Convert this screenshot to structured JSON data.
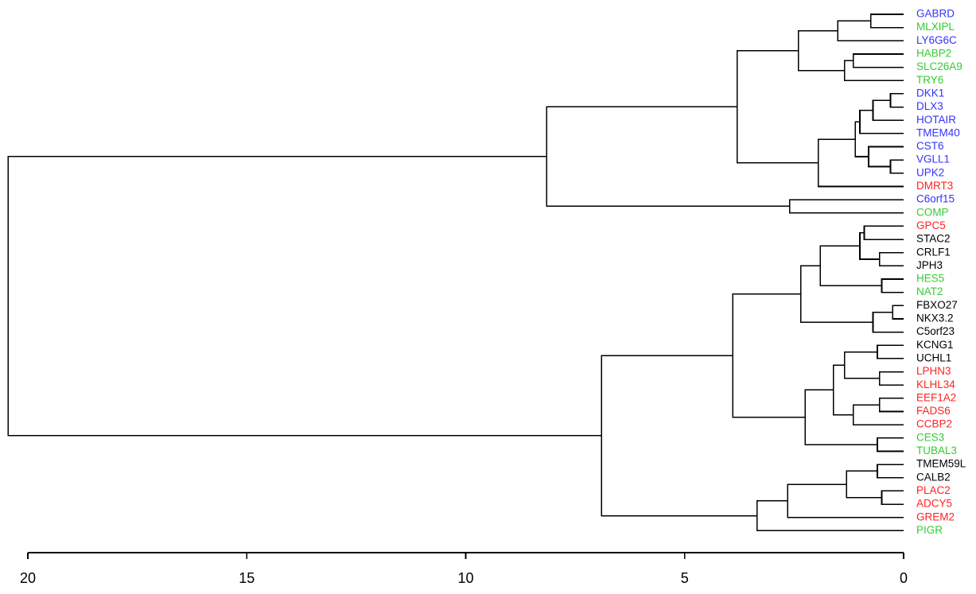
{
  "chart_data": {
    "type": "dendrogram",
    "title": "",
    "xlabel": "",
    "ylabel": "",
    "orientation": "horizontal",
    "xlim": [
      20,
      0
    ],
    "x_ticks": [
      20,
      15,
      10,
      5,
      0
    ],
    "x_tick_labels": [
      "20",
      "15",
      "10",
      "5",
      "0"
    ],
    "leaves": [
      {
        "label": "GABRD",
        "color": "#3333ff"
      },
      {
        "label": "MLXIPL",
        "color": "#33cc33"
      },
      {
        "label": "LY6G6C",
        "color": "#3333ff"
      },
      {
        "label": "HABP2",
        "color": "#33cc33"
      },
      {
        "label": "SLC26A9",
        "color": "#33cc33"
      },
      {
        "label": "TRY6",
        "color": "#33cc33"
      },
      {
        "label": "DKK1",
        "color": "#3333ff"
      },
      {
        "label": "DLX3",
        "color": "#3333ff"
      },
      {
        "label": "HOTAIR",
        "color": "#3333ff"
      },
      {
        "label": "TMEM40",
        "color": "#3333ff"
      },
      {
        "label": "CST6",
        "color": "#3333ff"
      },
      {
        "label": "VGLL1",
        "color": "#3333ff"
      },
      {
        "label": "UPK2",
        "color": "#3333ff"
      },
      {
        "label": "DMRT3",
        "color": "#ff2222"
      },
      {
        "label": "C6orf15",
        "color": "#3333ff"
      },
      {
        "label": "COMP",
        "color": "#33cc33"
      },
      {
        "label": "GPC5",
        "color": "#ff2222"
      },
      {
        "label": "STAC2",
        "color": "#000000"
      },
      {
        "label": "CRLF1",
        "color": "#000000"
      },
      {
        "label": "JPH3",
        "color": "#000000"
      },
      {
        "label": "HES5",
        "color": "#33cc33"
      },
      {
        "label": "NAT2",
        "color": "#33cc33"
      },
      {
        "label": "FBXO27",
        "color": "#000000"
      },
      {
        "label": "NKX3.2",
        "color": "#000000"
      },
      {
        "label": "C5orf23",
        "color": "#000000"
      },
      {
        "label": "KCNG1",
        "color": "#000000"
      },
      {
        "label": "UCHL1",
        "color": "#000000"
      },
      {
        "label": "LPHN3",
        "color": "#ff2222"
      },
      {
        "label": "KLHL34",
        "color": "#ff2222"
      },
      {
        "label": "EEF1A2",
        "color": "#ff2222"
      },
      {
        "label": "FADS6",
        "color": "#ff2222"
      },
      {
        "label": "CCBP2",
        "color": "#ff2222"
      },
      {
        "label": "CES3",
        "color": "#33cc33"
      },
      {
        "label": "TUBAL3",
        "color": "#33cc33"
      },
      {
        "label": "TMEM59L",
        "color": "#000000"
      },
      {
        "label": "CALB2",
        "color": "#000000"
      },
      {
        "label": "PLAC2",
        "color": "#ff2222"
      },
      {
        "label": "ADCY5",
        "color": "#ff2222"
      },
      {
        "label": "GREM2",
        "color": "#ff2222"
      },
      {
        "label": "PIGR",
        "color": "#33cc33"
      }
    ],
    "merges": [
      {
        "id": "m1",
        "children": [
          "GABRD",
          "MLXIPL"
        ],
        "height": 0.75
      },
      {
        "id": "m2",
        "children": [
          "m1",
          "LY6G6C"
        ],
        "height": 1.5
      },
      {
        "id": "m3",
        "children": [
          "HABP2",
          "SLC26A9"
        ],
        "height": 1.15
      },
      {
        "id": "m4",
        "children": [
          "m3",
          "TRY6"
        ],
        "height": 1.35
      },
      {
        "id": "m5",
        "children": [
          "m2",
          "m4"
        ],
        "height": 2.4
      },
      {
        "id": "m6",
        "children": [
          "DKK1",
          "DLX3"
        ],
        "height": 0.3
      },
      {
        "id": "m7",
        "children": [
          "m6",
          "HOTAIR"
        ],
        "height": 0.7
      },
      {
        "id": "m8",
        "children": [
          "m7",
          "TMEM40"
        ],
        "height": 1.0
      },
      {
        "id": "m9",
        "children": [
          "VGLL1",
          "UPK2"
        ],
        "height": 0.3
      },
      {
        "id": "m10",
        "children": [
          "CST6",
          "m9"
        ],
        "height": 0.8
      },
      {
        "id": "m11",
        "children": [
          "m8",
          "m10"
        ],
        "height": 1.1
      },
      {
        "id": "m12",
        "children": [
          "m11",
          "DMRT3"
        ],
        "height": 1.95
      },
      {
        "id": "m13",
        "children": [
          "m5",
          "m12"
        ],
        "height": 3.8
      },
      {
        "id": "m14",
        "children": [
          "C6orf15",
          "COMP"
        ],
        "height": 2.6
      },
      {
        "id": "m15",
        "children": [
          "m13",
          "m14"
        ],
        "height": 8.15
      },
      {
        "id": "m16",
        "children": [
          "GPC5",
          "STAC2"
        ],
        "height": 0.9
      },
      {
        "id": "m17",
        "children": [
          "CRLF1",
          "JPH3"
        ],
        "height": 0.55
      },
      {
        "id": "m18",
        "children": [
          "m16",
          "m17"
        ],
        "height": 1.0
      },
      {
        "id": "m19",
        "children": [
          "HES5",
          "NAT2"
        ],
        "height": 0.5
      },
      {
        "id": "m20",
        "children": [
          "m18",
          "m19"
        ],
        "height": 1.9
      },
      {
        "id": "m21",
        "children": [
          "FBXO27",
          "NKX3.2"
        ],
        "height": 0.25
      },
      {
        "id": "m22",
        "children": [
          "m21",
          "C5orf23"
        ],
        "height": 0.7
      },
      {
        "id": "m23",
        "children": [
          "m20",
          "m22"
        ],
        "height": 2.35
      },
      {
        "id": "m24",
        "children": [
          "KCNG1",
          "UCHL1"
        ],
        "height": 0.6
      },
      {
        "id": "m25",
        "children": [
          "LPHN3",
          "KLHL34"
        ],
        "height": 0.55
      },
      {
        "id": "m26",
        "children": [
          "m24",
          "m25"
        ],
        "height": 1.35
      },
      {
        "id": "m27",
        "children": [
          "EEF1A2",
          "FADS6"
        ],
        "height": 0.55
      },
      {
        "id": "m28",
        "children": [
          "m27",
          "CCBP2"
        ],
        "height": 1.15
      },
      {
        "id": "m29",
        "children": [
          "m26",
          "m28"
        ],
        "height": 1.6
      },
      {
        "id": "m30",
        "children": [
          "CES3",
          "TUBAL3"
        ],
        "height": 0.6
      },
      {
        "id": "m31",
        "children": [
          "m29",
          "m30"
        ],
        "height": 2.25
      },
      {
        "id": "m32",
        "children": [
          "m23",
          "m31"
        ],
        "height": 3.9
      },
      {
        "id": "m33",
        "children": [
          "TMEM59L",
          "CALB2"
        ],
        "height": 0.6
      },
      {
        "id": "m34",
        "children": [
          "PLAC2",
          "ADCY5"
        ],
        "height": 0.5
      },
      {
        "id": "m35",
        "children": [
          "m33",
          "m34"
        ],
        "height": 1.3
      },
      {
        "id": "m36",
        "children": [
          "m35",
          "GREM2"
        ],
        "height": 2.65
      },
      {
        "id": "m37",
        "children": [
          "m36",
          "PIGR"
        ],
        "height": 3.35
      },
      {
        "id": "m38",
        "children": [
          "m32",
          "m37"
        ],
        "height": 6.9
      },
      {
        "id": "m39",
        "children": [
          "m15",
          "m38"
        ],
        "height": 20.45
      }
    ]
  }
}
